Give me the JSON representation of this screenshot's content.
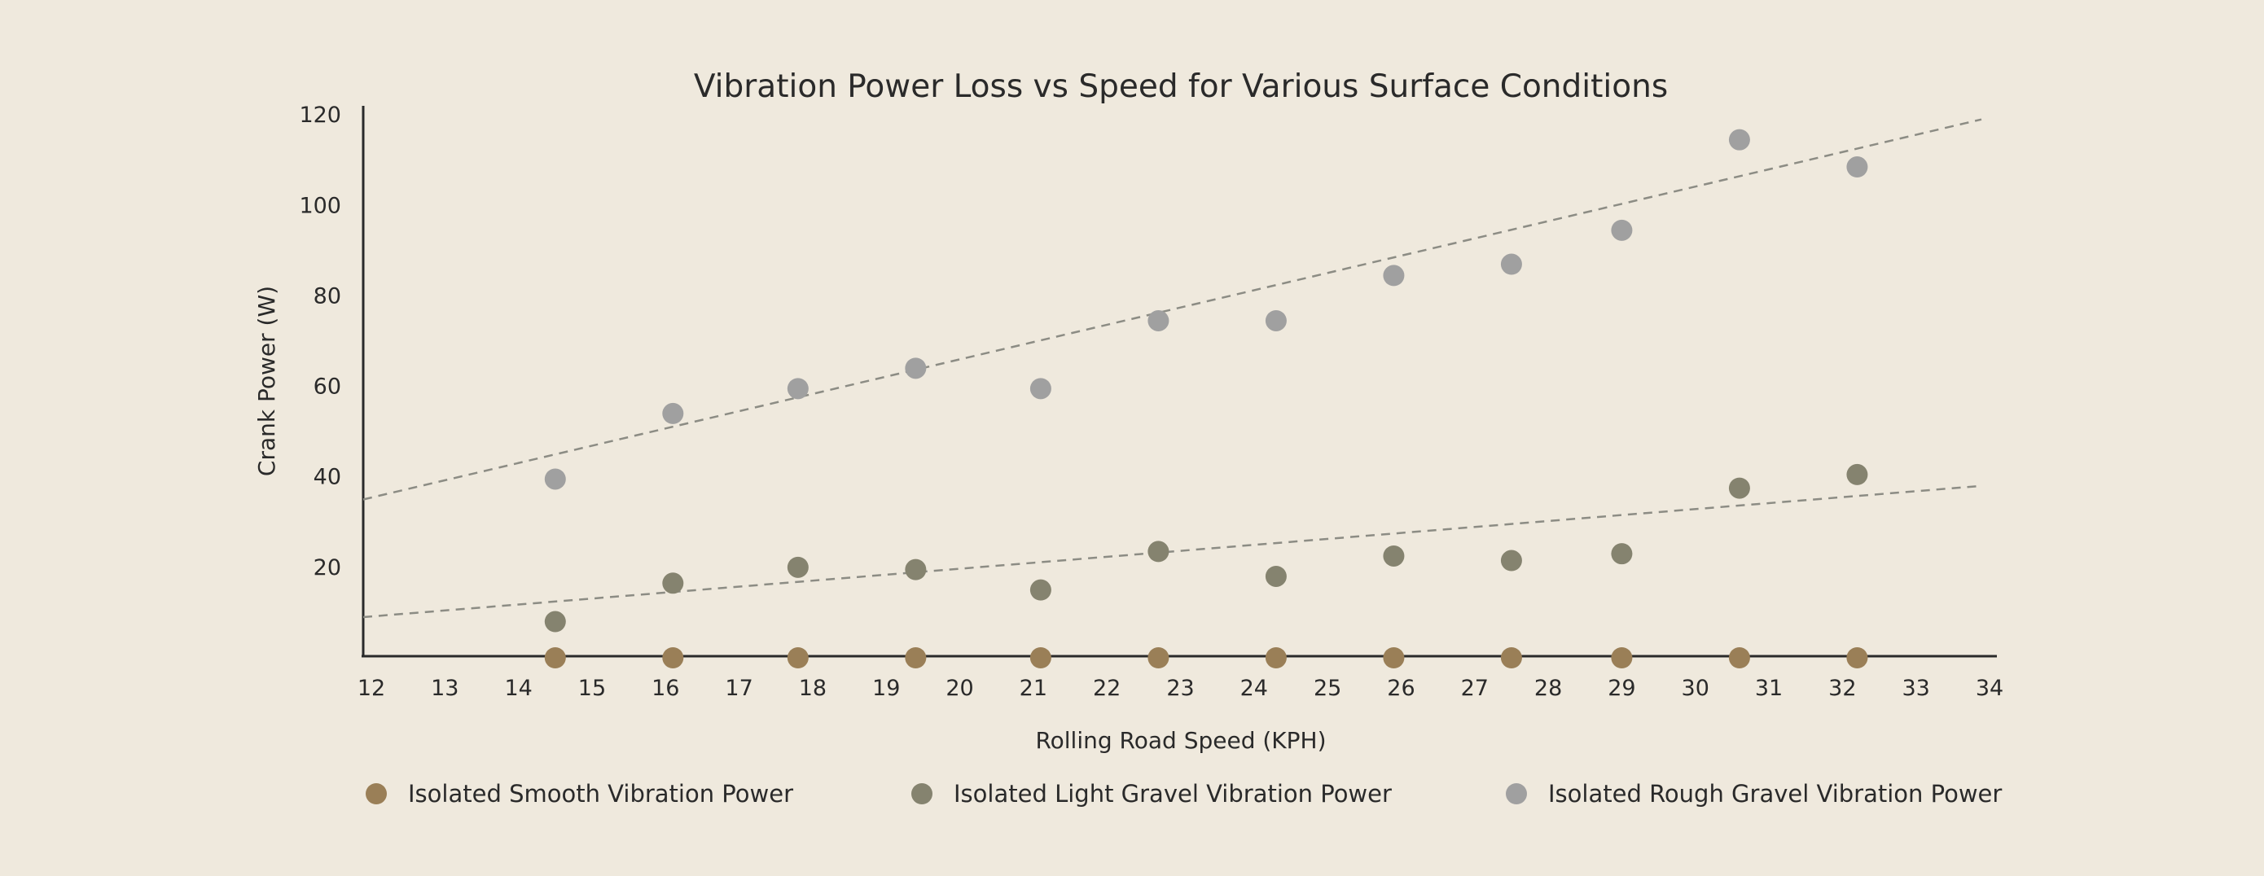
{
  "chart_data": {
    "type": "scatter",
    "title": "Vibration Power Loss vs Speed for Various Surface Conditions",
    "xlabel": "Rolling Road Speed (KPH)",
    "ylabel": "Crank Power (W)",
    "xlim": [
      12,
      34
    ],
    "ylim": [
      0,
      122
    ],
    "xticks": [
      12,
      13,
      14,
      15,
      16,
      17,
      18,
      19,
      20,
      21,
      22,
      23,
      24,
      25,
      26,
      27,
      28,
      29,
      30,
      31,
      32,
      33,
      34
    ],
    "yticks": [
      20,
      40,
      60,
      80,
      100,
      120
    ],
    "grid": false,
    "legend_position": "bottom",
    "series": [
      {
        "name": "Isolated Smooth Vibration Power",
        "color": "#9a7f57",
        "x": [
          14.5,
          16.1,
          17.8,
          19.4,
          21.1,
          22.7,
          24.3,
          25.9,
          27.5,
          29.0,
          30.6,
          32.2
        ],
        "y": [
          0,
          0,
          0,
          0,
          0,
          0,
          0,
          0,
          0,
          0,
          0,
          0
        ]
      },
      {
        "name": "Isolated Light Gravel Vibration Power",
        "color": "#85836f",
        "x": [
          14.5,
          16.1,
          17.8,
          19.4,
          21.1,
          22.7,
          24.3,
          25.9,
          27.5,
          29.0,
          30.6,
          32.2
        ],
        "y": [
          8,
          16.5,
          20,
          19.5,
          15,
          23.5,
          18,
          22.5,
          21.5,
          23,
          37.5,
          40.5
        ],
        "trend": [
          9,
          38
        ]
      },
      {
        "name": "Isolated Rough Gravel Vibration Power",
        "color": "#a0a0a0",
        "x": [
          14.5,
          16.1,
          17.8,
          19.4,
          21.1,
          22.7,
          24.3,
          25.9,
          27.5,
          29.0,
          30.6,
          32.2
        ],
        "y": [
          39.5,
          54,
          59.5,
          64,
          59.5,
          74.5,
          74.5,
          84.5,
          87,
          94.5,
          114.5,
          108.5
        ],
        "trend": [
          35,
          119
        ]
      }
    ]
  }
}
